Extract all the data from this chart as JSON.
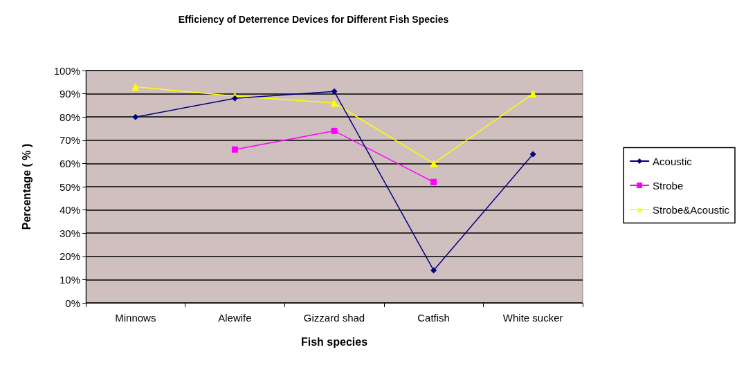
{
  "chart_data": {
    "type": "line",
    "title": "Efficiency of Deterrence Devices for Different Fish Species",
    "xlabel": "Fish species",
    "ylabel": "Percentage ( % )",
    "categories": [
      "Minnows",
      "Alewife",
      "Gizzard shad",
      "Catfish",
      "White sucker"
    ],
    "series": [
      {
        "name": "Acoustic",
        "color": "#000080",
        "marker": "diamond",
        "values": [
          80,
          88,
          91,
          14,
          64
        ]
      },
      {
        "name": "Strobe",
        "color": "#ff00ff",
        "marker": "square",
        "values": [
          null,
          66,
          74,
          52,
          null
        ]
      },
      {
        "name": "Strobe&Acoustic",
        "color": "#ffff00",
        "marker": "triangle",
        "values": [
          93,
          89,
          86,
          60,
          90
        ]
      }
    ],
    "ylim": [
      0,
      100
    ],
    "yticks": [
      {
        "value": 0,
        "label": "0%"
      },
      {
        "value": 10,
        "label": "10%"
      },
      {
        "value": 20,
        "label": "20%"
      },
      {
        "value": 30,
        "label": "30%"
      },
      {
        "value": 40,
        "label": "40%"
      },
      {
        "value": 50,
        "label": "50%"
      },
      {
        "value": 60,
        "label": "60%"
      },
      {
        "value": 70,
        "label": "70%"
      },
      {
        "value": 80,
        "label": "80%"
      },
      {
        "value": 90,
        "label": "90%"
      },
      {
        "value": 100,
        "label": "100%"
      }
    ],
    "grid": "y",
    "legend": "right"
  }
}
